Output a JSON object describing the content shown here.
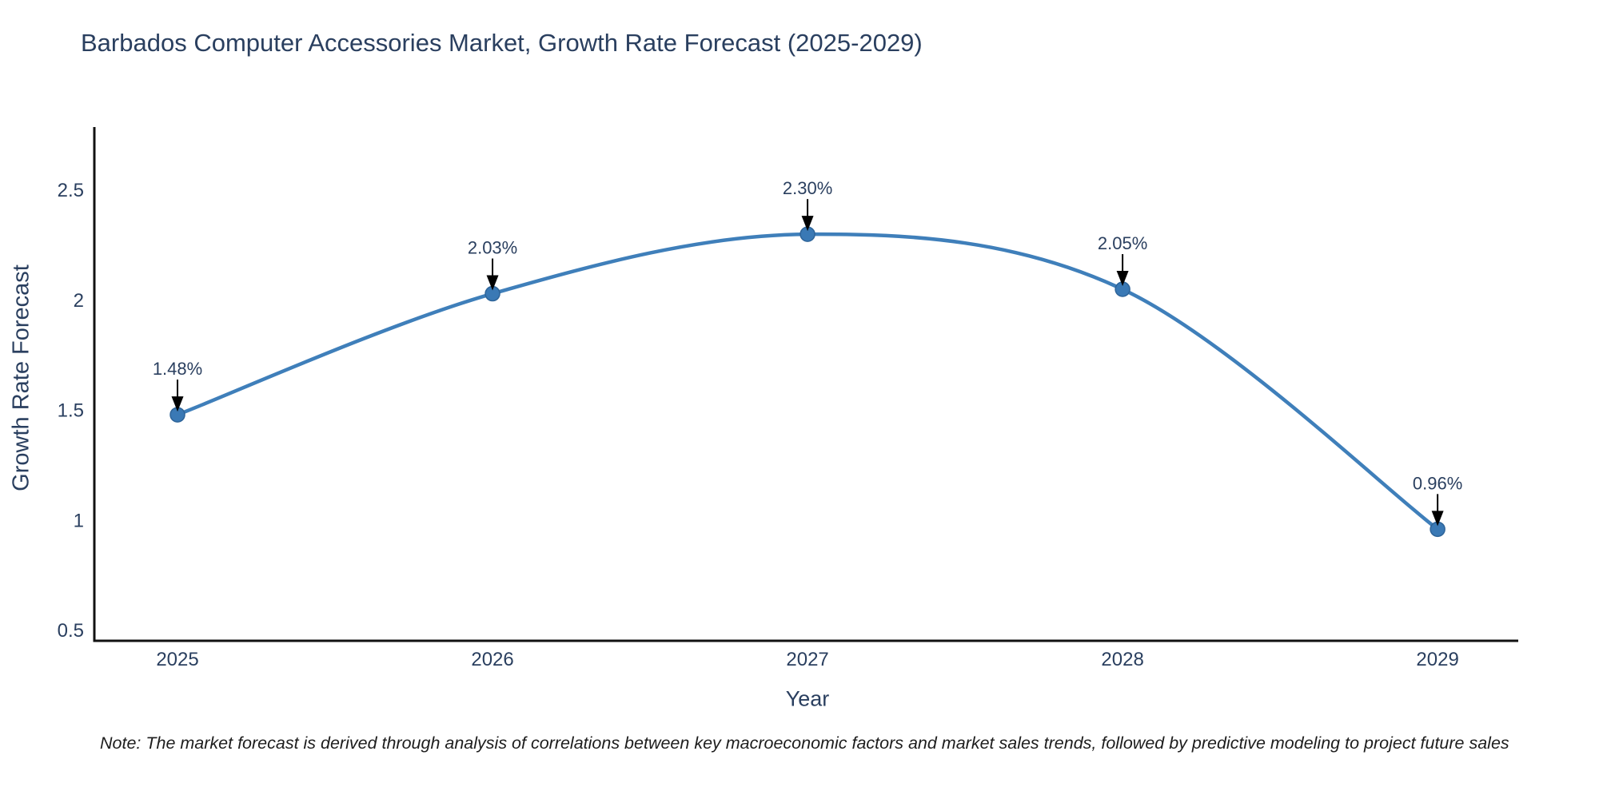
{
  "title": "Barbados Computer Accessories Market, Growth Rate Forecast (2025-2029)",
  "note": "Note: The market forecast is derived through analysis of correlations between key macroeconomic factors and market sales trends, followed by predictive modeling to project future sales",
  "chart_data": {
    "type": "line",
    "line_shape": "spline",
    "title": "Barbados Computer Accessories Market, Growth Rate Forecast (2025-2029)",
    "xlabel": "Year",
    "ylabel": "Growth Rate Forecast",
    "categories": [
      2025,
      2026,
      2027,
      2028,
      2029
    ],
    "values": [
      1.48,
      2.03,
      2.3,
      2.05,
      0.96
    ],
    "point_labels": [
      "1.48%",
      "2.03%",
      "2.30%",
      "2.05%",
      "0.96%"
    ],
    "yticks": [
      0.5,
      1,
      1.5,
      2,
      2.5
    ],
    "ytick_labels": [
      "0.5",
      "1",
      "1.5",
      "2",
      "2.5"
    ],
    "xtick_labels": [
      "2025",
      "2026",
      "2027",
      "2028",
      "2029"
    ],
    "ylim": [
      0.453,
      2.787
    ],
    "xlim": [
      2024.736,
      2029.256
    ],
    "grid": false,
    "legend": false,
    "colors": {
      "line": "#3f7fba",
      "marker_fill": "#3a79b5",
      "marker_edge": "#2e6499",
      "axis_line": "#121212",
      "tick_text": "#2a3f5f",
      "annotation_text": "#2a3f5f",
      "annotation_arrow": "#000000",
      "title_text": "#2a3f5f",
      "background": "#ffffff"
    }
  }
}
